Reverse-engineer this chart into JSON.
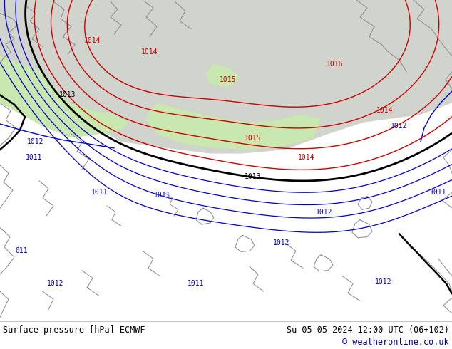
{
  "title_left": "Surface pressure [hPa] ECMWF",
  "title_right": "Su 05-05-2024 12:00 UTC (06+102)",
  "copyright": "© weatheronline.co.uk",
  "fig_width": 6.34,
  "fig_height": 4.9,
  "dpi": 100,
  "green_color": "#c8e8b0",
  "gray_color": "#d0d4cc",
  "contour_red": "#cc0000",
  "contour_black": "#000000",
  "contour_blue": "#0000cc",
  "coast_color": "#888888",
  "bottom_text_color": "#00008b",
  "label_fontsize": 7.0,
  "red_labels": [
    [
      130,
      360,
      "1014"
    ],
    [
      210,
      345,
      "1014"
    ],
    [
      320,
      310,
      "1015"
    ],
    [
      470,
      330,
      "1016"
    ],
    [
      540,
      270,
      "1014"
    ],
    [
      355,
      235,
      "1015"
    ],
    [
      430,
      210,
      "1014"
    ]
  ],
  "black_labels": [
    [
      95,
      290,
      "1013"
    ],
    [
      355,
      185,
      "1013"
    ]
  ],
  "blue_labels": [
    [
      50,
      230,
      "1012"
    ],
    [
      48,
      210,
      "1011"
    ],
    [
      140,
      165,
      "1011"
    ],
    [
      228,
      162,
      "1011"
    ],
    [
      395,
      100,
      "1012"
    ],
    [
      455,
      140,
      "1012"
    ],
    [
      30,
      90,
      "011"
    ],
    [
      78,
      48,
      "1012"
    ],
    [
      275,
      48,
      "1011"
    ],
    [
      538,
      50,
      "1012"
    ],
    [
      560,
      250,
      "1012"
    ],
    [
      615,
      165,
      "1011"
    ]
  ]
}
